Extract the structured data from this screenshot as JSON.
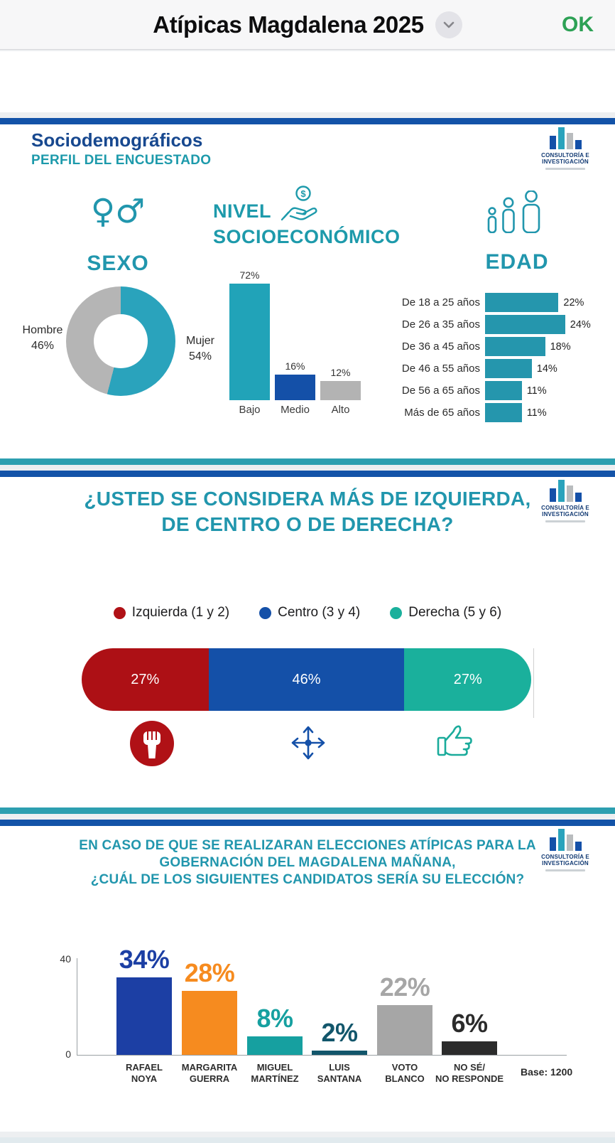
{
  "header": {
    "title": "Atípicas Magdalena 2025",
    "ok_label": "OK"
  },
  "brand": {
    "name_line1": "CONSULTORÍA E",
    "name_line2": "INVESTIGACIÓN"
  },
  "slide1": {
    "title": "Sociodemográficos",
    "subtitle": "PERFIL DEL ENCUESTADO",
    "sexo": {
      "heading": "SEXO",
      "icon_glyphs": "♀♂",
      "hombre_label": "Hombre",
      "hombre_pct": "46%",
      "mujer_label": "Mujer",
      "mujer_pct": "54%",
      "mujer_value": 54,
      "mujer_color": "#2aa3bc",
      "hombre_color": "#b5b5b5"
    },
    "nse": {
      "heading_line1": "NIVEL",
      "heading_line2": "SOCIOECONÓMICO",
      "bars": [
        {
          "label": "Bajo",
          "pct": "72%",
          "value": 72,
          "color": "#21a3b8"
        },
        {
          "label": "Medio",
          "pct": "16%",
          "value": 16,
          "color": "#1450a8"
        },
        {
          "label": "Alto",
          "pct": "12%",
          "value": 12,
          "color": "#b3b3b3"
        }
      ]
    },
    "edad": {
      "heading": "EDAD",
      "bar_color": "#2596ad",
      "rows": [
        {
          "label": "De 18 a 25 años",
          "pct": "22%",
          "value": 22
        },
        {
          "label": "De 26 a 35 años",
          "pct": "24%",
          "value": 24
        },
        {
          "label": "De 36 a 45 años",
          "pct": "18%",
          "value": 18
        },
        {
          "label": "De 46 a 55 años",
          "pct": "14%",
          "value": 14
        },
        {
          "label": "De 56 a 65 años",
          "pct": "11%",
          "value": 11
        },
        {
          "label": "Más de 65 años",
          "pct": "11%",
          "value": 11
        }
      ]
    }
  },
  "slide2": {
    "title_line1": "¿USTED SE CONSIDERA MÁS DE IZQUIERDA,",
    "title_line2": "DE CENTRO O DE DERECHA?",
    "legend": [
      {
        "label": "Izquierda (1 y 2)",
        "color": "#b01116"
      },
      {
        "label": "Centro (3 y 4)",
        "color": "#1450a8"
      },
      {
        "label": "Derecha (5 y 6)",
        "color": "#1ab09c"
      }
    ],
    "segments": [
      {
        "pct": "27%",
        "value": 27,
        "color": "#ad1015"
      },
      {
        "pct": "46%",
        "value": 46,
        "color": "#1450a8"
      },
      {
        "pct": "27%",
        "value": 27,
        "color": "#1ab09c"
      }
    ]
  },
  "slide3": {
    "title_line1": "EN CASO DE QUE SE REALIZARAN ELECCIONES ATÍPICAS PARA LA",
    "title_line2": "GOBERNACIÓN DEL MAGDALENA MAÑANA,",
    "title_line3": "¿CUÁL DE LOS SIGUIENTES CANDIDATOS SERÍA SU ELECCIÓN?",
    "ytick_top": "40",
    "ytick_bottom": "0",
    "base_label": "Base: 1200",
    "bars": [
      {
        "name1": "RAFAEL",
        "name2": "NOYA",
        "pct": "34%",
        "value": 34,
        "color": "#1c3fa4"
      },
      {
        "name1": "MARGARITA",
        "name2": "GUERRA",
        "pct": "28%",
        "value": 28,
        "color": "#f68b1f"
      },
      {
        "name1": "MIGUEL",
        "name2": "MARTÍNEZ",
        "pct": "8%",
        "value": 8,
        "color": "#16a0a0"
      },
      {
        "name1": "LUIS",
        "name2": "SANTANA",
        "pct": "2%",
        "value": 2,
        "color": "#12566b"
      },
      {
        "name1": "VOTO",
        "name2": "BLANCO",
        "pct": "22%",
        "value": 22,
        "color": "#a6a6a6"
      },
      {
        "name1": "NO SÉ/",
        "name2": "NO RESPONDE",
        "pct": "6%",
        "value": 6,
        "color": "#2b2b2b"
      }
    ]
  },
  "chart_data": [
    {
      "type": "pie",
      "title": "SEXO",
      "labels": [
        "Hombre",
        "Mujer"
      ],
      "values": [
        46,
        54
      ],
      "colors": [
        "#b5b5b5",
        "#2aa3bc"
      ],
      "donut": true
    },
    {
      "type": "bar",
      "title": "NIVEL SOCIOECONÓMICO",
      "categories": [
        "Bajo",
        "Medio",
        "Alto"
      ],
      "values": [
        72,
        16,
        12
      ],
      "colors": [
        "#21a3b8",
        "#1450a8",
        "#b3b3b3"
      ]
    },
    {
      "type": "bar",
      "orientation": "horizontal",
      "title": "EDAD",
      "categories": [
        "De 18 a 25 años",
        "De 26 a 35 años",
        "De 36 a 45 años",
        "De 46 a 55 años",
        "De 56 a 65 años",
        "Más de 65 años"
      ],
      "values": [
        22,
        24,
        18,
        14,
        11,
        11
      ],
      "color": "#2596ad"
    },
    {
      "type": "bar",
      "subtype": "stacked-horizontal",
      "title": "¿USTED SE CONSIDERA MÁS DE IZQUIERDA, DE CENTRO O DE DERECHA?",
      "categories": [
        "Izquierda (1 y 2)",
        "Centro (3 y 4)",
        "Derecha (5 y 6)"
      ],
      "values": [
        27,
        46,
        27
      ],
      "colors": [
        "#ad1015",
        "#1450a8",
        "#1ab09c"
      ],
      "legend_position": "top"
    },
    {
      "type": "bar",
      "title": "EN CASO DE QUE SE REALIZARAN ELECCIONES ATÍPICAS PARA LA GOBERNACIÓN DEL MAGDALENA MAÑANA, ¿CUÁL DE LOS SIGUIENTES CANDIDATOS SERÍA SU ELECCIÓN?",
      "categories": [
        "RAFAEL NOYA",
        "MARGARITA GUERRA",
        "MIGUEL MARTÍNEZ",
        "LUIS SANTANA",
        "VOTO BLANCO",
        "NO SÉ/ NO RESPONDE"
      ],
      "values": [
        34,
        28,
        8,
        2,
        22,
        6
      ],
      "colors": [
        "#1c3fa4",
        "#f68b1f",
        "#16a0a0",
        "#12566b",
        "#a6a6a6",
        "#2b2b2b"
      ],
      "ylim": [
        0,
        40
      ],
      "annotation": "Base: 1200"
    }
  ]
}
